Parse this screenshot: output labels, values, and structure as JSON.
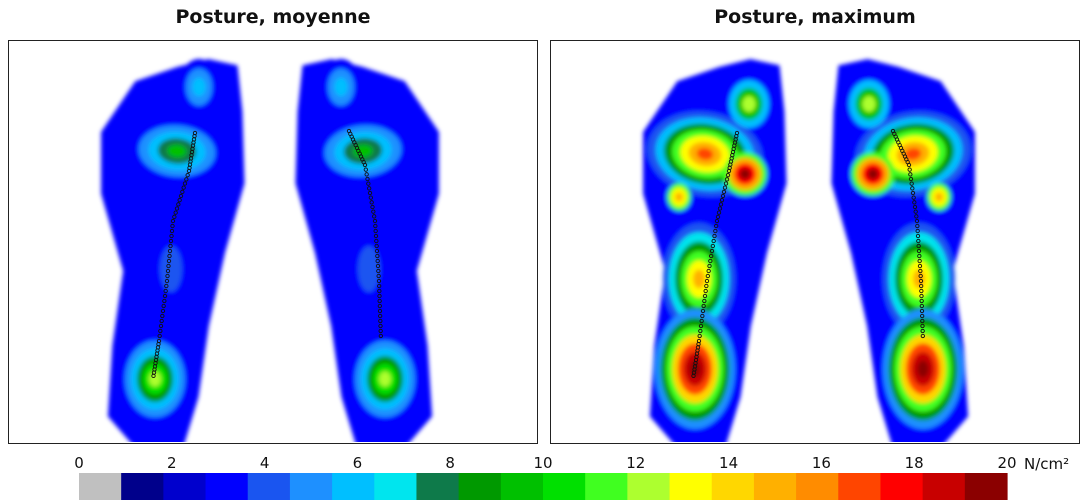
{
  "chart_data": [
    {
      "type": "heatmap",
      "title": "Posture, moyenne",
      "feet": [
        "left",
        "right"
      ],
      "intensity": "low",
      "pressure_peak_approx": 9
    },
    {
      "type": "heatmap",
      "title": "Posture, maximum",
      "feet": [
        "left",
        "right"
      ],
      "intensity": "high",
      "pressure_peak_approx": 20
    }
  ],
  "colorbar": {
    "min": 0,
    "max": 20,
    "ticks": [
      "0",
      "2",
      "4",
      "6",
      "8",
      "10",
      "12",
      "14",
      "16",
      "18",
      "20"
    ],
    "unit": "N/cm²",
    "colors": [
      "#c0c0c0",
      "#00008b",
      "#0000cd",
      "#0000ff",
      "#1a55f0",
      "#1e90ff",
      "#00bfff",
      "#00e5ee",
      "#0e7a4a",
      "#009900",
      "#00c000",
      "#00e000",
      "#40ff20",
      "#adff2f",
      "#ffff00",
      "#ffd700",
      "#ffb000",
      "#ff8c00",
      "#ff4500",
      "#ff0000",
      "#c80000",
      "#8b0000"
    ]
  }
}
